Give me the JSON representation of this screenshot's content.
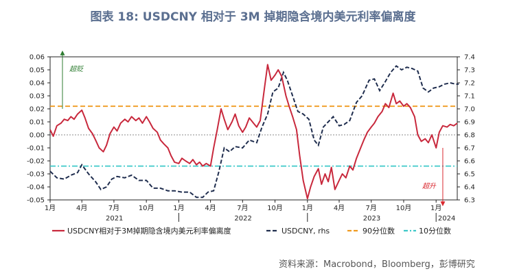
{
  "title": "图表 18: USDCNY 相对于 3M 掉期隐含境内美元利率偏离度",
  "source": "资料来源：Macrobond，Bloomberg，彭博研究",
  "colors": {
    "deviation": "#c8283c",
    "usdcny": "#1f2d4e",
    "p90": "#f09a1e",
    "p10": "#3cc8c8",
    "zero": "#888888",
    "rich_arrow": "#2f7d32",
    "cheap_arrow": "#d9282f"
  },
  "chart_data": {
    "type": "line",
    "title": "图表 18: USDCNY 相对于 3M 掉期隐含境内美元利率偏离度",
    "x_tick_labels": [
      "1月",
      "4月",
      "7月",
      "10月",
      "1月",
      "4月",
      "7月",
      "10月",
      "1月",
      "4月",
      "7月",
      "10月",
      "1月"
    ],
    "year_labels": [
      "2021",
      "2022",
      "2023",
      "2024"
    ],
    "x_range": [
      "2021-01",
      "2024-03"
    ],
    "y_left": {
      "lim": [
        -0.05,
        0.06
      ],
      "ticks": [
        "0.06",
        "0.05",
        "0.04",
        "0.03",
        "0.02",
        "0.01",
        "0.00",
        "-0.01",
        "-0.02",
        "-0.03",
        "-0.04",
        "-0.05"
      ]
    },
    "y_right": {
      "lim": [
        6.3,
        7.4
      ],
      "ticks": [
        "7.4",
        "7.3",
        "7.2",
        "7.1",
        "7.0",
        "6.9",
        "6.8",
        "6.7",
        "6.6",
        "6.5",
        "6.4",
        "6.3"
      ]
    },
    "grid": false,
    "legend_position": "bottom",
    "series": [
      {
        "name": "USDCNY相对于3M掉期隐含境内美元利率偏离度",
        "axis": "left",
        "style": "solid",
        "points": [
          [
            "2021-01-01",
            0.004
          ],
          [
            "2021-01-10",
            -0.001
          ],
          [
            "2021-01-20",
            0.007
          ],
          [
            "2021-02-01",
            0.009
          ],
          [
            "2021-02-10",
            0.012
          ],
          [
            "2021-02-20",
            0.011
          ],
          [
            "2021-03-01",
            0.014
          ],
          [
            "2021-03-10",
            0.012
          ],
          [
            "2021-03-20",
            0.016
          ],
          [
            "2021-04-01",
            0.019
          ],
          [
            "2021-04-10",
            0.013
          ],
          [
            "2021-04-20",
            0.005
          ],
          [
            "2021-05-01",
            0.001
          ],
          [
            "2021-05-10",
            -0.004
          ],
          [
            "2021-05-20",
            -0.01
          ],
          [
            "2021-06-01",
            -0.013
          ],
          [
            "2021-06-10",
            -0.008
          ],
          [
            "2021-06-20",
            0.001
          ],
          [
            "2021-07-01",
            0.006
          ],
          [
            "2021-07-10",
            0.003
          ],
          [
            "2021-07-20",
            0.009
          ],
          [
            "2021-08-01",
            0.012
          ],
          [
            "2021-08-10",
            0.01
          ],
          [
            "2021-08-20",
            0.014
          ],
          [
            "2021-09-01",
            0.011
          ],
          [
            "2021-09-10",
            0.013
          ],
          [
            "2021-09-20",
            0.009
          ],
          [
            "2021-10-01",
            0.014
          ],
          [
            "2021-10-10",
            0.01
          ],
          [
            "2021-10-20",
            0.005
          ],
          [
            "2021-11-01",
            0.002
          ],
          [
            "2021-11-10",
            -0.004
          ],
          [
            "2021-11-20",
            -0.007
          ],
          [
            "2021-12-01",
            -0.01
          ],
          [
            "2021-12-10",
            -0.016
          ],
          [
            "2021-12-20",
            -0.021
          ],
          [
            "2022-01-01",
            -0.022
          ],
          [
            "2022-01-10",
            -0.018
          ],
          [
            "2022-01-20",
            -0.02
          ],
          [
            "2022-02-01",
            -0.022
          ],
          [
            "2022-02-10",
            -0.019
          ],
          [
            "2022-02-20",
            -0.023
          ],
          [
            "2022-03-01",
            -0.021
          ],
          [
            "2022-03-10",
            -0.024
          ],
          [
            "2022-03-20",
            -0.022
          ],
          [
            "2022-04-01",
            -0.024
          ],
          [
            "2022-04-10",
            -0.01
          ],
          [
            "2022-04-20",
            0.004
          ],
          [
            "2022-05-01",
            0.02
          ],
          [
            "2022-05-10",
            0.012
          ],
          [
            "2022-05-20",
            0.004
          ],
          [
            "2022-06-01",
            0.01
          ],
          [
            "2022-06-10",
            0.016
          ],
          [
            "2022-06-20",
            0.007
          ],
          [
            "2022-07-01",
            0.002
          ],
          [
            "2022-07-10",
            0.006
          ],
          [
            "2022-07-20",
            0.013
          ],
          [
            "2022-08-01",
            0.009
          ],
          [
            "2022-08-10",
            0.006
          ],
          [
            "2022-08-20",
            0.011
          ],
          [
            "2022-09-01",
            0.036
          ],
          [
            "2022-09-10",
            0.054
          ],
          [
            "2022-09-20",
            0.042
          ],
          [
            "2022-10-01",
            0.046
          ],
          [
            "2022-10-10",
            0.05
          ],
          [
            "2022-10-20",
            0.045
          ],
          [
            "2022-11-01",
            0.03
          ],
          [
            "2022-11-10",
            0.022
          ],
          [
            "2022-11-20",
            0.014
          ],
          [
            "2022-12-01",
            0.004
          ],
          [
            "2022-12-10",
            -0.016
          ],
          [
            "2022-12-20",
            -0.035
          ],
          [
            "2023-01-01",
            -0.049
          ],
          [
            "2023-01-10",
            -0.04
          ],
          [
            "2023-01-20",
            -0.032
          ],
          [
            "2023-02-01",
            -0.026
          ],
          [
            "2023-02-10",
            -0.038
          ],
          [
            "2023-02-20",
            -0.03
          ],
          [
            "2023-03-01",
            -0.036
          ],
          [
            "2023-03-10",
            -0.025
          ],
          [
            "2023-03-20",
            -0.042
          ],
          [
            "2023-04-01",
            -0.035
          ],
          [
            "2023-04-10",
            -0.03
          ],
          [
            "2023-04-20",
            -0.033
          ],
          [
            "2023-05-01",
            -0.024
          ],
          [
            "2023-05-10",
            -0.027
          ],
          [
            "2023-05-20",
            -0.018
          ],
          [
            "2023-06-01",
            -0.01
          ],
          [
            "2023-06-10",
            -0.004
          ],
          [
            "2023-06-20",
            0.002
          ],
          [
            "2023-07-01",
            0.006
          ],
          [
            "2023-07-10",
            0.009
          ],
          [
            "2023-07-20",
            0.014
          ],
          [
            "2023-08-01",
            0.018
          ],
          [
            "2023-08-10",
            0.024
          ],
          [
            "2023-08-20",
            0.021
          ],
          [
            "2023-09-01",
            0.032
          ],
          [
            "2023-09-10",
            0.024
          ],
          [
            "2023-09-20",
            0.026
          ],
          [
            "2023-10-01",
            0.022
          ],
          [
            "2023-10-10",
            0.024
          ],
          [
            "2023-10-20",
            0.021
          ],
          [
            "2023-11-01",
            0.014
          ],
          [
            "2023-11-10",
            0.0
          ],
          [
            "2023-11-20",
            -0.005
          ],
          [
            "2023-12-01",
            -0.003
          ],
          [
            "2023-12-10",
            -0.006
          ],
          [
            "2023-12-20",
            0.0
          ],
          [
            "2024-01-01",
            -0.01
          ],
          [
            "2024-01-10",
            0.002
          ],
          [
            "2024-01-20",
            0.007
          ],
          [
            "2024-02-01",
            0.006
          ],
          [
            "2024-02-10",
            0.008
          ],
          [
            "2024-02-20",
            0.007
          ],
          [
            "2024-03-01",
            0.009
          ]
        ]
      },
      {
        "name": "USDCNY, rhs",
        "axis": "right",
        "style": "dashed",
        "points": [
          [
            "2021-01-01",
            6.52
          ],
          [
            "2021-01-20",
            6.47
          ],
          [
            "2021-02-10",
            6.46
          ],
          [
            "2021-03-01",
            6.49
          ],
          [
            "2021-03-20",
            6.51
          ],
          [
            "2021-04-01",
            6.57
          ],
          [
            "2021-04-20",
            6.5
          ],
          [
            "2021-05-10",
            6.44
          ],
          [
            "2021-05-25",
            6.38
          ],
          [
            "2021-06-10",
            6.4
          ],
          [
            "2021-06-25",
            6.46
          ],
          [
            "2021-07-10",
            6.48
          ],
          [
            "2021-08-01",
            6.47
          ],
          [
            "2021-08-20",
            6.49
          ],
          [
            "2021-09-10",
            6.45
          ],
          [
            "2021-10-01",
            6.45
          ],
          [
            "2021-10-20",
            6.39
          ],
          [
            "2021-11-10",
            6.39
          ],
          [
            "2021-12-01",
            6.37
          ],
          [
            "2021-12-20",
            6.37
          ],
          [
            "2022-01-10",
            6.36
          ],
          [
            "2022-02-01",
            6.36
          ],
          [
            "2022-02-20",
            6.32
          ],
          [
            "2022-03-10",
            6.32
          ],
          [
            "2022-03-25",
            6.36
          ],
          [
            "2022-04-10",
            6.37
          ],
          [
            "2022-04-25",
            6.52
          ],
          [
            "2022-05-10",
            6.7
          ],
          [
            "2022-05-25",
            6.67
          ],
          [
            "2022-06-10",
            6.71
          ],
          [
            "2022-07-01",
            6.7
          ],
          [
            "2022-07-20",
            6.76
          ],
          [
            "2022-08-10",
            6.74
          ],
          [
            "2022-08-25",
            6.86
          ],
          [
            "2022-09-10",
            6.96
          ],
          [
            "2022-09-25",
            7.13
          ],
          [
            "2022-10-10",
            7.16
          ],
          [
            "2022-10-25",
            7.28
          ],
          [
            "2022-11-05",
            7.22
          ],
          [
            "2022-11-20",
            7.1
          ],
          [
            "2022-12-05",
            6.98
          ],
          [
            "2022-12-20",
            6.96
          ],
          [
            "2023-01-05",
            6.92
          ],
          [
            "2023-01-20",
            6.76
          ],
          [
            "2023-02-01",
            6.72
          ],
          [
            "2023-02-15",
            6.86
          ],
          [
            "2023-03-01",
            6.9
          ],
          [
            "2023-03-15",
            6.94
          ],
          [
            "2023-04-01",
            6.87
          ],
          [
            "2023-04-15",
            6.88
          ],
          [
            "2023-05-01",
            6.91
          ],
          [
            "2023-05-20",
            7.05
          ],
          [
            "2023-06-05",
            7.1
          ],
          [
            "2023-06-25",
            7.22
          ],
          [
            "2023-07-10",
            7.23
          ],
          [
            "2023-07-25",
            7.14
          ],
          [
            "2023-08-10",
            7.21
          ],
          [
            "2023-08-25",
            7.28
          ],
          [
            "2023-09-10",
            7.33
          ],
          [
            "2023-09-25",
            7.3
          ],
          [
            "2023-10-10",
            7.32
          ],
          [
            "2023-10-25",
            7.31
          ],
          [
            "2023-11-10",
            7.29
          ],
          [
            "2023-11-25",
            7.16
          ],
          [
            "2023-12-10",
            7.13
          ],
          [
            "2023-12-25",
            7.16
          ],
          [
            "2024-01-10",
            7.17
          ],
          [
            "2024-01-25",
            7.19
          ],
          [
            "2024-02-10",
            7.2
          ],
          [
            "2024-02-25",
            7.19
          ],
          [
            "2024-03-05",
            7.19
          ]
        ]
      },
      {
        "name": "90分位数",
        "axis": "left",
        "style": "dashed",
        "value": 0.022
      },
      {
        "name": "10分位数",
        "axis": "left",
        "style": "dashdot",
        "value": -0.024
      }
    ],
    "annotations": [
      {
        "text": "超贬",
        "direction": "up",
        "x": "2021-02-05",
        "y_from": 0.02,
        "y_to": 0.063
      },
      {
        "text": "超升",
        "direction": "down",
        "x": "2024-01-20",
        "y_from": -0.01,
        "y_to": -0.053
      }
    ]
  }
}
